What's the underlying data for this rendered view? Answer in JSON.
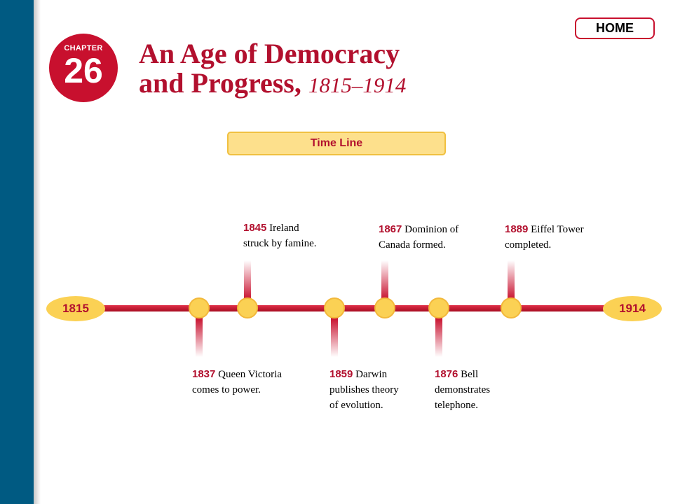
{
  "header": {
    "chapter_label": "CHAPTER",
    "chapter_number": "26",
    "title_line1": "An Age of Democracy",
    "title_line2": "and Progress,",
    "title_dates": "1815–1914",
    "home_label": "HOME"
  },
  "section": {
    "tab_label": "Time Line"
  },
  "timeline": {
    "start_year": "1815",
    "end_year": "1914",
    "events": [
      {
        "year": "1837",
        "line1": "Queen Victoria",
        "line2": "comes to power.",
        "line3": "",
        "side": "below"
      },
      {
        "year": "1845",
        "line1": "Ireland",
        "line2": "struck by famine.",
        "line3": "",
        "side": "above"
      },
      {
        "year": "1859",
        "line1": "Darwin",
        "line2": "publishes theory",
        "line3": "of evolution.",
        "side": "below"
      },
      {
        "year": "1867",
        "line1": "Dominion of",
        "line2": "Canada formed.",
        "line3": "",
        "side": "above"
      },
      {
        "year": "1876",
        "line1": "Bell",
        "line2": "demonstrates",
        "line3": "telephone.",
        "side": "below"
      },
      {
        "year": "1889",
        "line1": "Eiffel Tower",
        "line2": "completed.",
        "line3": "",
        "side": "above"
      }
    ]
  },
  "colors": {
    "sidebar": "#005a82",
    "accent_red": "#c8102e",
    "title_red": "#b2102e",
    "node_yellow": "#fbd154",
    "tab_yellow": "#fde08c"
  }
}
